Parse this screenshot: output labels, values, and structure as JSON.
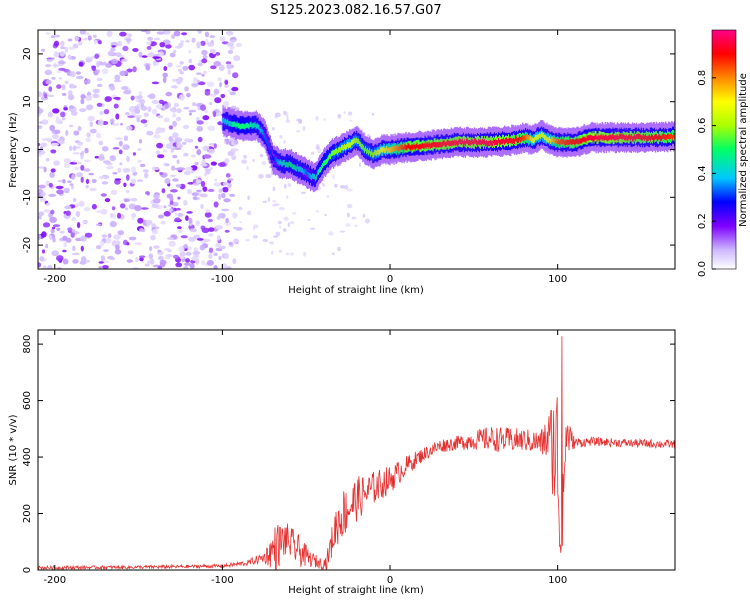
{
  "title": "S125.2023.082.16.57.G07",
  "chart_data": [
    {
      "type": "heatmap",
      "xlabel": "Height of straight line (km)",
      "ylabel": "Frequency (Hz)",
      "xlim": [
        -210,
        170
      ],
      "ylim": [
        -25,
        25
      ],
      "x_ticks": [
        -200,
        -100,
        0,
        100
      ],
      "y_ticks": [
        -20,
        -10,
        0,
        10,
        20
      ],
      "colorbar": {
        "label": "Normalized spectral amplitude",
        "range": [
          0,
          1
        ],
        "ticks": [
          "0.0",
          "0.2",
          "0.4",
          "0.6",
          "0.8"
        ],
        "colors": [
          "#ffffff",
          "#cdb7ff",
          "#7e00ff",
          "#0000ff",
          "#00c8ff",
          "#00ff66",
          "#aaff00",
          "#ffff00",
          "#ff8800",
          "#ff0000",
          "#ff0088"
        ]
      },
      "noise_region_x": [
        -210,
        -90
      ],
      "ridge": {
        "x": [
          -100,
          -90,
          -80,
          -75,
          -70,
          -65,
          -60,
          -55,
          -50,
          -45,
          -40,
          -35,
          -30,
          -25,
          -20,
          -15,
          -10,
          -5,
          0,
          10,
          20,
          40,
          60,
          75,
          80,
          85,
          90,
          95,
          100,
          110,
          120,
          140,
          160,
          170
        ],
        "y": [
          6,
          5,
          5,
          3,
          -2,
          -3,
          -3,
          -4,
          -5,
          -6,
          -3,
          -1,
          0,
          1,
          2,
          0,
          -1,
          0,
          0,
          0.5,
          0.8,
          1.5,
          1.5,
          2,
          2.5,
          2,
          3,
          2,
          1.5,
          1.5,
          2.5,
          2.5,
          2.5,
          2.8
        ]
      },
      "ridge_intensity": [
        0.4,
        0.5,
        0.45,
        0.35,
        0.3,
        0.45,
        0.5,
        0.45,
        0.35,
        0.45,
        0.5,
        0.55,
        0.6,
        0.65,
        0.6,
        0.55,
        0.6,
        0.7,
        0.75,
        0.9,
        0.92,
        0.95,
        0.95,
        0.92,
        0.85,
        0.7,
        0.65,
        0.7,
        0.85,
        0.9,
        0.95,
        0.95,
        0.9,
        0.85
      ]
    },
    {
      "type": "line",
      "xlabel": "Height of straight line (km)",
      "ylabel": "SNR (10 * v/v)",
      "xlim": [
        -210,
        170
      ],
      "ylim": [
        0,
        850
      ],
      "x_ticks": [
        -200,
        -100,
        0,
        100
      ],
      "y_ticks": [
        0,
        200,
        400,
        600,
        800
      ],
      "line_color": "#e53030",
      "envelope": {
        "x": [
          -210,
          -150,
          -100,
          -85,
          -75,
          -68,
          -62,
          -55,
          -48,
          -42,
          -38,
          -32,
          -28,
          -20,
          -10,
          0,
          10,
          20,
          30,
          40,
          50,
          60,
          70,
          80,
          90,
          95,
          100,
          102,
          105,
          110,
          120,
          140,
          170
        ],
        "mean": [
          8,
          10,
          14,
          25,
          45,
          80,
          110,
          70,
          40,
          25,
          25,
          160,
          200,
          250,
          290,
          320,
          370,
          410,
          440,
          450,
          460,
          465,
          460,
          460,
          450,
          470,
          400,
          80,
          480,
          450,
          455,
          450,
          445
        ],
        "amp": [
          6,
          6,
          6,
          10,
          20,
          90,
          60,
          60,
          30,
          20,
          25,
          80,
          90,
          80,
          60,
          50,
          35,
          25,
          25,
          25,
          35,
          45,
          45,
          40,
          45,
          100,
          300,
          300,
          80,
          20,
          15,
          15,
          15
        ]
      }
    }
  ]
}
